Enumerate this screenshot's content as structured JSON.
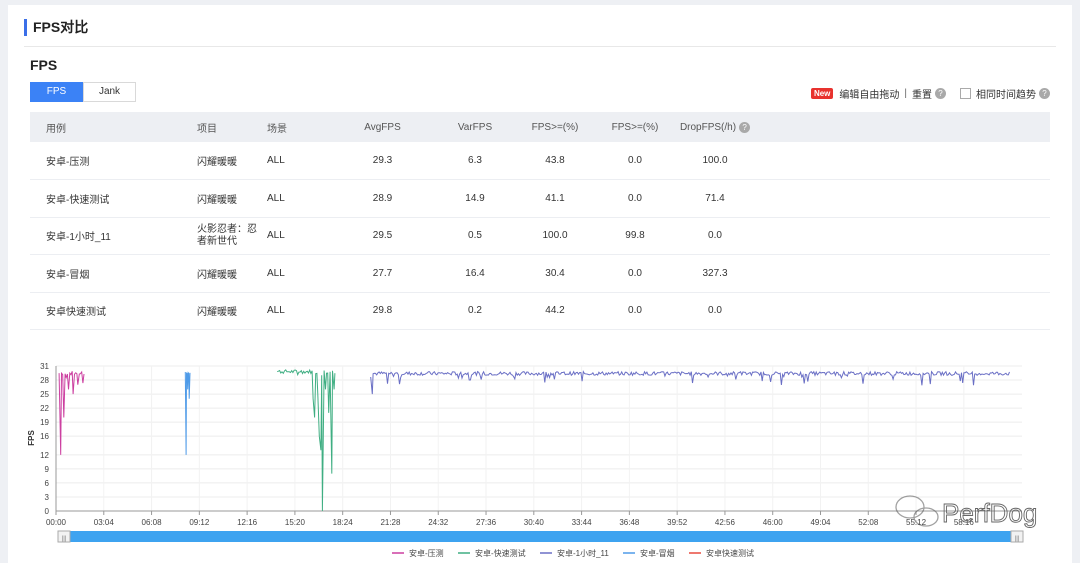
{
  "page": {
    "section_title": "FPS对比",
    "sub_title": "FPS"
  },
  "tabs": [
    {
      "label": "FPS",
      "active": true
    },
    {
      "label": "Jank",
      "active": false
    }
  ],
  "toolbar": {
    "new_badge": "New",
    "edit_drag": "编辑自由拖动",
    "separator": "|",
    "reset": "重置",
    "same_time_trend": "相同时间趋势",
    "help_glyph": "?"
  },
  "table": {
    "headers": [
      "用例",
      "项目",
      "场景",
      "AvgFPS",
      "VarFPS",
      "FPS>=(%)",
      "FPS>=(%)",
      "DropFPS(/h)"
    ],
    "rows": [
      [
        "安卓-压测",
        "闪耀暖暖",
        "ALL",
        "29.3",
        "6.3",
        "43.8",
        "0.0",
        "100.0"
      ],
      [
        "安卓-快速测试",
        "闪耀暖暖",
        "ALL",
        "28.9",
        "14.9",
        "41.1",
        "0.0",
        "71.4"
      ],
      [
        "安卓-1小时_11",
        "火影忍者：忍者新世代",
        "ALL",
        "29.5",
        "0.5",
        "100.0",
        "99.8",
        "0.0"
      ],
      [
        "安卓-冒烟",
        "闪耀暖暖",
        "ALL",
        "27.7",
        "16.4",
        "30.4",
        "0.0",
        "327.3"
      ],
      [
        "安卓快速测试",
        "闪耀暖暖",
        "ALL",
        "29.8",
        "0.2",
        "44.2",
        "0.0",
        "0.0"
      ]
    ]
  },
  "chart_data": {
    "type": "line",
    "ylabel": "FPS",
    "ylim": [
      0,
      31
    ],
    "yticks": [
      0,
      3,
      6,
      9,
      12,
      16,
      19,
      22,
      25,
      28,
      31
    ],
    "xlim": [
      0,
      62
    ],
    "xticks": [
      "00:00",
      "03:04",
      "06:08",
      "09:12",
      "12:16",
      "15:20",
      "18:24",
      "21:28",
      "24:32",
      "27:36",
      "30:40",
      "33:44",
      "36:48",
      "39:52",
      "42:56",
      "46:00",
      "49:04",
      "52:08",
      "55:12",
      "58:16"
    ],
    "grid": true,
    "legend_position": "bottom",
    "series": [
      {
        "name": "安卓-压测",
        "color": "#cc3fa0",
        "x_range": [
          0.2,
          1.8
        ],
        "base": 29.5,
        "dips": [
          [
            0.3,
            12
          ],
          [
            0.5,
            20
          ],
          [
            0.8,
            26
          ],
          [
            1.1,
            25
          ],
          [
            1.4,
            27
          ]
        ]
      },
      {
        "name": "安卓-快速测试",
        "color": "#3fae82",
        "x_range": [
          14.2,
          17.9
        ],
        "base": 29.8,
        "dips": [
          [
            16.5,
            24
          ],
          [
            16.6,
            20
          ],
          [
            16.8,
            25
          ],
          [
            16.9,
            16
          ],
          [
            17.0,
            13
          ],
          [
            17.1,
            0
          ],
          [
            17.3,
            26
          ],
          [
            17.5,
            21
          ],
          [
            17.7,
            8
          ],
          [
            17.85,
            26
          ]
        ]
      },
      {
        "name": "安卓-1小时_11",
        "color": "#6a6fc5",
        "x_range": [
          20.2,
          61.2
        ],
        "base": 29.4,
        "dips": [
          [
            20.3,
            25
          ]
        ]
      },
      {
        "name": "安卓-冒烟",
        "color": "#4f9be8",
        "x_range": [
          8.3,
          8.6
        ],
        "base": 29.5,
        "dips": [
          [
            8.35,
            12
          ],
          [
            8.45,
            26
          ],
          [
            8.55,
            24
          ]
        ]
      },
      {
        "name": "安卓快速测试",
        "color": "#e94a3f",
        "x_range": [],
        "base": null,
        "dips": []
      }
    ]
  },
  "slider": {
    "handle_glyph": "|||"
  },
  "watermark": "PerfDog"
}
